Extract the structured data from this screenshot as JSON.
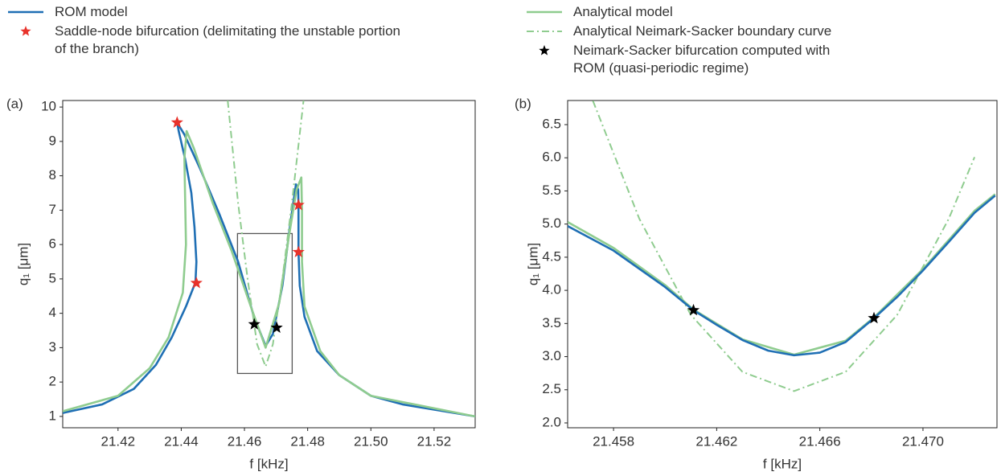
{
  "chart_data": [
    {
      "type": "line",
      "label": "(a)",
      "xlabel": "f [kHz]",
      "ylabel": "q₁ [μm]",
      "xlim": [
        21.4025,
        21.533
      ],
      "ylim": [
        0.67,
        10.19
      ],
      "xticks": [
        21.42,
        21.44,
        21.46,
        21.48,
        {
          "value": 21.5,
          "label": "21.50"
        },
        21.52
      ],
      "yticks": [
        1,
        2,
        3,
        4,
        5,
        6,
        7,
        8,
        9,
        10
      ],
      "inset_box": {
        "x": [
          21.4578,
          21.4751
        ],
        "y": [
          2.25,
          6.32
        ]
      },
      "series": [
        {
          "name": "ROM model",
          "style": "line",
          "color": "#1f6fb4",
          "x": [
            21.4025,
            21.415,
            21.425,
            21.432,
            21.437,
            21.4415,
            21.4445,
            21.4448,
            21.4442,
            21.4432,
            21.4412,
            21.4392,
            21.4387,
            21.441,
            21.446,
            21.452,
            21.458,
            21.463,
            21.4667,
            21.469,
            21.472,
            21.4745,
            21.4763,
            21.477,
            21.4771,
            21.4771,
            21.4775,
            21.479,
            21.483,
            21.49,
            21.5,
            21.51,
            21.533
          ],
          "values": [
            1.1,
            1.35,
            1.8,
            2.5,
            3.3,
            4.2,
            4.9,
            5.5,
            6.5,
            7.5,
            8.5,
            9.3,
            9.55,
            9.2,
            8.2,
            6.9,
            5.5,
            3.9,
            3.05,
            3.4,
            4.8,
            6.6,
            7.75,
            7.6,
            7.15,
            5.78,
            4.8,
            3.9,
            2.9,
            2.2,
            1.6,
            1.35,
            1.0
          ]
        },
        {
          "name": "Saddle-node bifurcation (delimitating the unstable portion of the branch)",
          "style": "star",
          "color": "#e8322b",
          "x": [
            21.4387,
            21.4448,
            21.4771,
            21.4771
          ],
          "values": [
            9.55,
            4.88,
            7.15,
            5.78
          ]
        },
        {
          "name": "Analytical model",
          "style": "line",
          "color": "#8fcc8f",
          "x": [
            21.4025,
            21.42,
            21.43,
            21.436,
            21.4405,
            21.4415,
            21.4412,
            21.441,
            21.4417,
            21.444,
            21.45,
            21.456,
            21.462,
            21.4667,
            21.471,
            21.474,
            21.4765,
            21.478,
            21.4782,
            21.4782,
            21.479,
            21.484,
            21.49,
            21.5,
            21.533
          ],
          "values": [
            1.15,
            1.6,
            2.4,
            3.3,
            4.6,
            6.0,
            7.5,
            8.5,
            9.3,
            8.8,
            7.2,
            5.8,
            4.2,
            3.0,
            4.3,
            6.2,
            7.6,
            7.95,
            7.0,
            5.5,
            4.2,
            2.9,
            2.2,
            1.6,
            1.0
          ]
        },
        {
          "name": "Analytical Neimark-Sacker boundary curve",
          "style": "dashdot",
          "color": "#8fcc8f",
          "x": [
            21.4547,
            21.458,
            21.461,
            21.464,
            21.4667,
            21.469,
            21.472,
            21.475,
            21.4787
          ],
          "values": [
            10.19,
            7.2,
            5.0,
            3.1,
            2.45,
            3.1,
            5.0,
            7.2,
            10.19
          ]
        },
        {
          "name": "Neimark-Sacker bifurcation computed with ROM (quasi-periodic regime)",
          "style": "star",
          "color": "#000000",
          "x": [
            21.4631,
            21.4702
          ],
          "values": [
            3.68,
            3.58
          ]
        }
      ]
    },
    {
      "type": "line",
      "label": "(b)",
      "xlabel": "f [kHz]",
      "ylabel": "q₁ [μm]",
      "xlim": [
        21.45622,
        21.47287
      ],
      "ylim": [
        1.927,
        6.864
      ],
      "xticks": [
        21.458,
        21.462,
        21.466,
        {
          "value": 21.47,
          "label": "21.470"
        }
      ],
      "yticks": [
        {
          "value": 2,
          "label": "2.0"
        },
        2.5,
        {
          "value": 3,
          "label": "3.0"
        },
        3.5,
        {
          "value": 4,
          "label": "4.0"
        },
        4.5,
        {
          "value": 5,
          "label": "5.0"
        },
        5.5,
        {
          "value": 6,
          "label": "6.0"
        },
        6.5
      ],
      "series": [
        {
          "style": "dashdot",
          "color": "#8fcc8f",
          "x": [
            21.4572,
            21.459,
            21.461,
            21.463,
            21.465,
            21.467,
            21.469,
            21.471,
            21.472
          ],
          "values": [
            6.86,
            5.08,
            3.63,
            2.77,
            2.48,
            2.77,
            3.63,
            5.08,
            6.01
          ]
        },
        {
          "style": "line",
          "color": "#8fcc8f",
          "x": [
            21.45622,
            21.458,
            21.46,
            21.4611,
            21.463,
            21.465,
            21.467,
            21.4681,
            21.47,
            21.472,
            21.4728
          ],
          "values": [
            5.03,
            4.64,
            4.08,
            3.71,
            3.26,
            3.03,
            3.24,
            3.59,
            4.32,
            5.2,
            5.45
          ]
        },
        {
          "style": "line",
          "color": "#1f6fb4",
          "x": [
            21.45622,
            21.458,
            21.46,
            21.4611,
            21.462,
            21.463,
            21.464,
            21.465,
            21.466,
            21.467,
            21.4681,
            21.469,
            21.47,
            21.471,
            21.472,
            21.4728
          ],
          "values": [
            4.97,
            4.6,
            4.05,
            3.7,
            3.48,
            3.25,
            3.09,
            3.02,
            3.06,
            3.22,
            3.58,
            3.9,
            4.3,
            4.73,
            5.17,
            5.43
          ]
        },
        {
          "style": "star",
          "color": "#000000",
          "x": [
            21.4611,
            21.4681
          ],
          "values": [
            3.7,
            3.58
          ]
        }
      ]
    }
  ]
}
